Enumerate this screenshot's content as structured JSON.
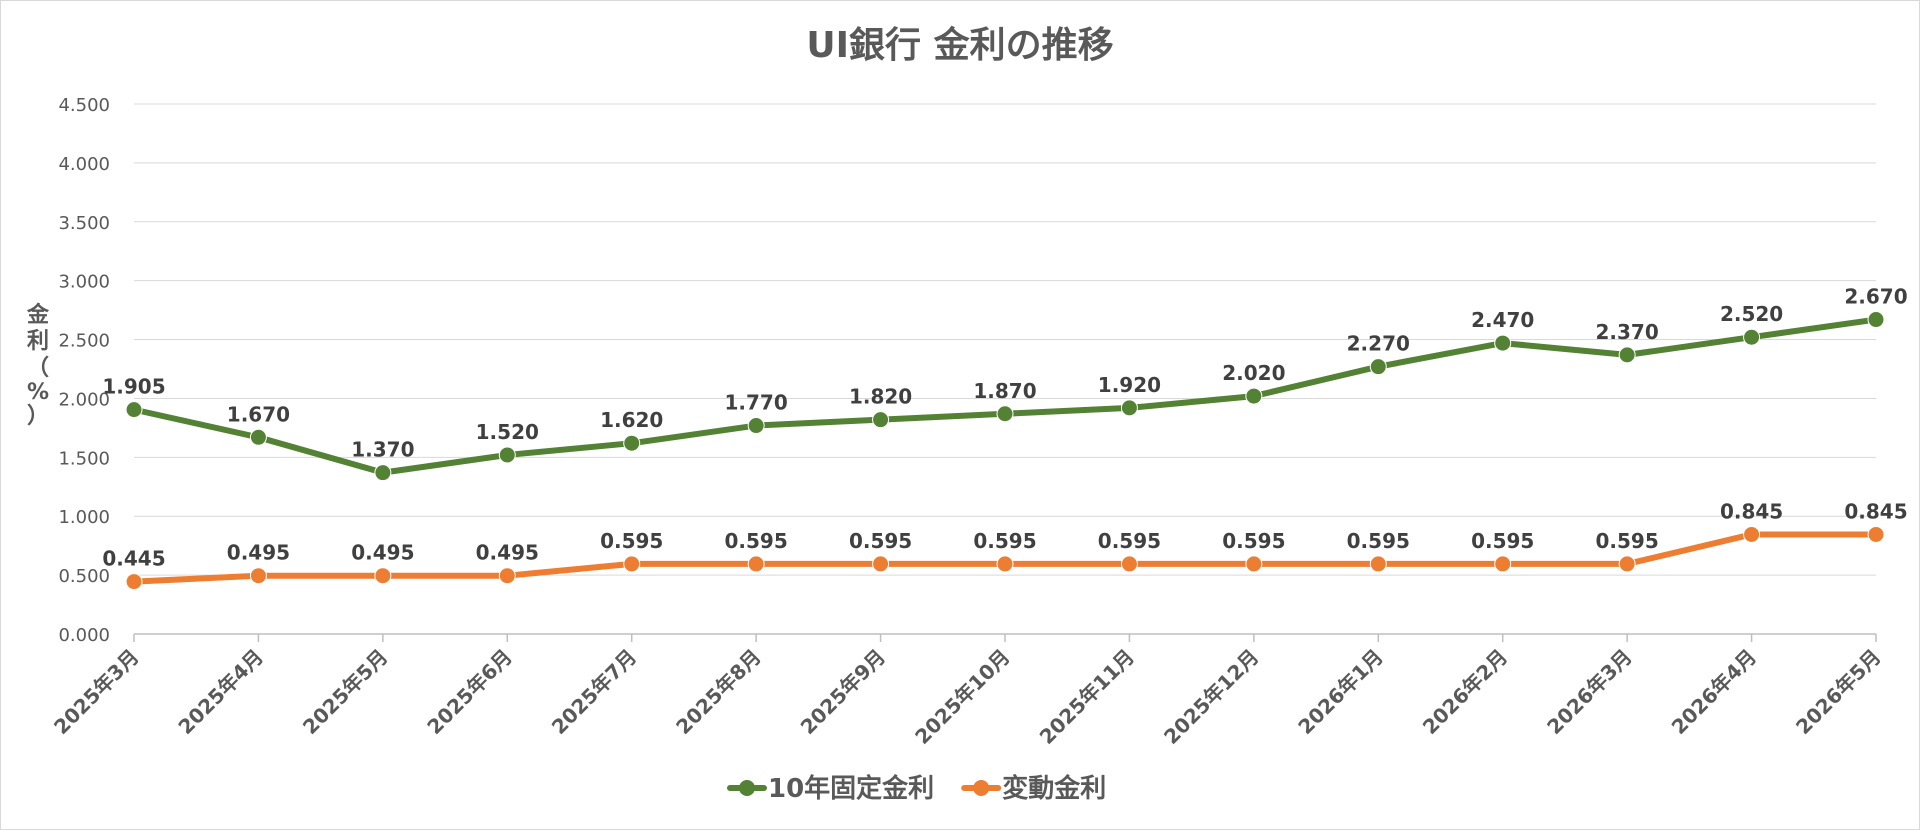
{
  "chart_data": {
    "type": "line",
    "title": "UI銀行 金利の推移",
    "ylabel_chars": [
      "金",
      "利",
      "（",
      "%",
      "）"
    ],
    "ylim": [
      0,
      4.5
    ],
    "y_ticks": [
      "0.000",
      "0.500",
      "1.000",
      "1.500",
      "2.000",
      "2.500",
      "3.000",
      "3.500",
      "4.000",
      "4.500"
    ],
    "y_tick_values": [
      0,
      0.5,
      1.0,
      1.5,
      2.0,
      2.5,
      3.0,
      3.5,
      4.0,
      4.5
    ],
    "grid": true,
    "legend_position": "bottom",
    "categories": [
      "2025年3月",
      "2025年4月",
      "2025年5月",
      "2025年6月",
      "2025年7月",
      "2025年8月",
      "2025年9月",
      "2025年10月",
      "2025年11月",
      "2025年12月",
      "2026年1月",
      "2026年2月",
      "2026年3月",
      "2026年4月",
      "2026年5月"
    ],
    "series": [
      {
        "name": "10年固定金利",
        "color": "#548235",
        "values": [
          1.905,
          1.67,
          1.37,
          1.52,
          1.62,
          1.77,
          1.82,
          1.87,
          1.92,
          2.02,
          2.27,
          2.47,
          2.37,
          2.52,
          2.67
        ],
        "labels": [
          "1.905",
          "1.670",
          "1.370",
          "1.520",
          "1.620",
          "1.770",
          "1.820",
          "1.870",
          "1.920",
          "2.020",
          "2.270",
          "2.470",
          "2.370",
          "2.520",
          "2.670"
        ]
      },
      {
        "name": "変動金利",
        "color": "#ed7d31",
        "values": [
          0.445,
          0.495,
          0.495,
          0.495,
          0.595,
          0.595,
          0.595,
          0.595,
          0.595,
          0.595,
          0.595,
          0.595,
          0.595,
          0.845,
          0.845
        ],
        "labels": [
          "0.445",
          "0.495",
          "0.495",
          "0.495",
          "0.595",
          "0.595",
          "0.595",
          "0.595",
          "0.595",
          "0.595",
          "0.595",
          "0.595",
          "0.595",
          "0.845",
          "0.845"
        ]
      }
    ]
  }
}
